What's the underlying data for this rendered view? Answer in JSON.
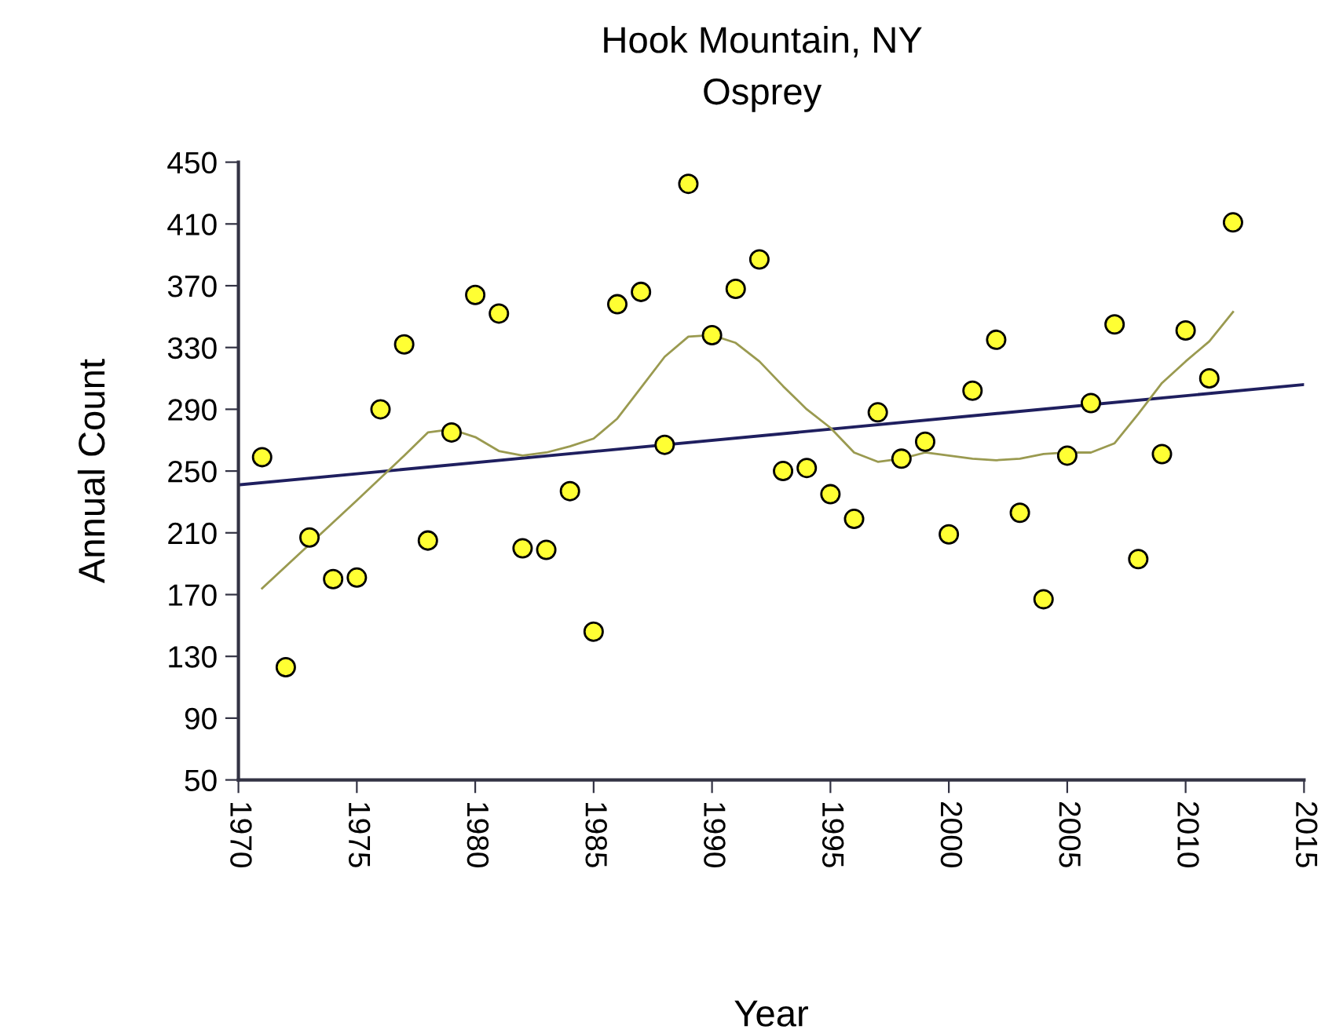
{
  "chart_data": {
    "type": "scatter",
    "title": "Hook Mountain, NY",
    "subtitle": "Osprey",
    "xlabel": "Year",
    "ylabel": "Annual Count",
    "xlim": [
      1970,
      2015
    ],
    "xticks": [
      1970,
      1975,
      1980,
      1985,
      1990,
      1995,
      2000,
      2005,
      2010,
      2015
    ],
    "ylim": [
      50,
      450
    ],
    "yticks": [
      50,
      90,
      130,
      170,
      210,
      250,
      290,
      330,
      370,
      410,
      450
    ],
    "grid": false,
    "legend": false,
    "series": [
      {
        "color": "#ffff33",
        "marker": "circle",
        "x": [
          1971,
          1972,
          1973,
          1974,
          1975,
          1976,
          1977,
          1978,
          1979,
          1980,
          1981,
          1982,
          1983,
          1984,
          1985,
          1986,
          1987,
          1988,
          1989,
          1990,
          1991,
          1992,
          1993,
          1994,
          1995,
          1996,
          1997,
          1998,
          1999,
          2000,
          2001,
          2002,
          2003,
          2004,
          2005,
          2006,
          2007,
          2008,
          2009,
          2010,
          2011,
          2012
        ],
        "values": [
          259,
          123,
          207,
          180,
          181,
          290,
          332,
          205,
          275,
          364,
          352,
          200,
          199,
          237,
          146,
          358,
          366,
          267,
          436,
          338,
          368,
          387,
          250,
          252,
          235,
          219,
          288,
          258,
          269,
          209,
          302,
          335,
          223,
          167,
          260,
          294,
          345,
          193,
          261,
          341,
          310,
          411
        ]
      },
      {
        "type": "line",
        "color": "#1f1f5f",
        "marker": "none",
        "line_style": "solid",
        "x": [
          1970,
          2015
        ],
        "values": [
          241,
          306
        ]
      },
      {
        "type": "line",
        "color": "#9a9a50",
        "marker": "none",
        "line_style": "solid",
        "x": [
          1971,
          1975,
          1977,
          1978,
          1979,
          1980,
          1981,
          1982,
          1983,
          1984,
          1985,
          1986,
          1987,
          1988,
          1989,
          1990,
          1991,
          1992,
          1993,
          1994,
          1995,
          1996,
          1997,
          1998,
          1999,
          2000,
          2001,
          2002,
          2003,
          2004,
          2005,
          2006,
          2007,
          2008,
          2009,
          2010,
          2011,
          2012
        ],
        "values": [
          174,
          231,
          260,
          275,
          277,
          272,
          263,
          260,
          262,
          266,
          271,
          284,
          304,
          324,
          337,
          338,
          333,
          321,
          305,
          290,
          278,
          262,
          256,
          258,
          262,
          260,
          258,
          257,
          258,
          261,
          262,
          262,
          268,
          287,
          307,
          321,
          334,
          353
        ]
      }
    ]
  }
}
